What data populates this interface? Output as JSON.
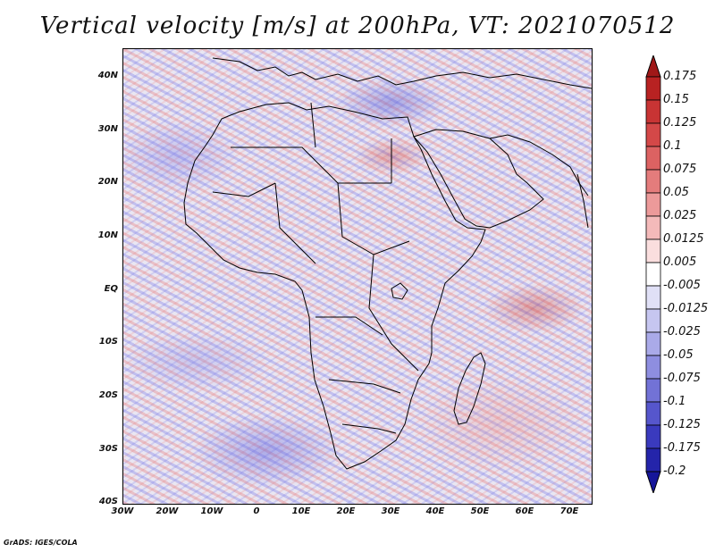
{
  "title": "Vertical velocity [m/s] at 200hPa, VT: 2021070512",
  "footer": "GrADS: IGES/COLA",
  "map": {
    "region": "Africa and surrounding oceans",
    "lat_ticks": [
      "40N",
      "30N",
      "20N",
      "10N",
      "EQ",
      "10S",
      "20S",
      "30S",
      "40S"
    ],
    "lon_ticks": [
      "30W",
      "20W",
      "10W",
      "0",
      "10E",
      "20E",
      "30E",
      "40E",
      "50E",
      "60E",
      "70E"
    ]
  },
  "colorbar": {
    "labels": [
      "0.175",
      "0.15",
      "0.125",
      "0.1",
      "0.075",
      "0.05",
      "0.025",
      "0.0125",
      "0.005",
      "-0.005",
      "-0.0125",
      "-0.025",
      "-0.05",
      "-0.075",
      "-0.1",
      "-0.125",
      "-0.175",
      "-0.2"
    ],
    "colors": [
      "#a01818",
      "#b82222",
      "#c83434",
      "#d44848",
      "#dc6262",
      "#e47c7c",
      "#ec9a9a",
      "#f4baba",
      "#fadede",
      "#ffffff",
      "#e0e0f6",
      "#c6c6f0",
      "#aaaae8",
      "#8e8ee0",
      "#7272d6",
      "#5656cc",
      "#3a3abe",
      "#2424aa",
      "#16169a"
    ]
  }
}
